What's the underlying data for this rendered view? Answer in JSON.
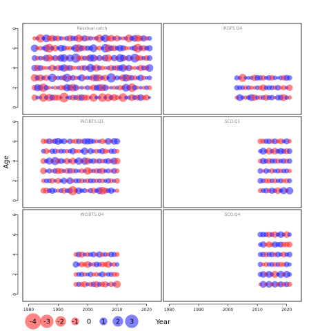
{
  "chart_data": {
    "type": "scatter",
    "subtype": "residual-bubble",
    "xlabel": "Year",
    "ylabel": "Age",
    "xlim": [
      1978,
      2025
    ],
    "ylim": [
      -0.5,
      8.3
    ],
    "xticks": [
      1980,
      1990,
      2000,
      2010,
      2020
    ],
    "yticks": [
      0,
      2,
      4,
      6,
      8
    ],
    "positive_color": "#1a1aff",
    "negative_color": "#ff2020",
    "legend": {
      "values": [
        -4,
        -3,
        -2,
        -1,
        0,
        1,
        2,
        3
      ],
      "labels": [
        "-4",
        "-3",
        "-2",
        "-1",
        "0",
        "1",
        "2",
        "3"
      ]
    },
    "panels": [
      {
        "title": "Residual catch",
        "ages": [
          1,
          2,
          3,
          4,
          5,
          6,
          7
        ],
        "years": [
          1982,
          2021
        ],
        "size_rows": [
          [
            2.8,
            1.9,
            1.2,
            0.8,
            1.5,
            2.2,
            1.0,
            0.6,
            1.7,
            2.4
          ],
          [
            2.4,
            1.6,
            0.9,
            1.8,
            2.1,
            1.1,
            0.7,
            1.9,
            1.3,
            0.8
          ],
          [
            2.6,
            1.4,
            2.0,
            1.0,
            1.6,
            2.3,
            1.2,
            0.9,
            1.8,
            1.1
          ],
          [
            2.2,
            1.7,
            1.1,
            2.0,
            1.4,
            0.8,
            1.9,
            1.5,
            1.0,
            1.6
          ],
          [
            1.9,
            2.3,
            1.3,
            0.9,
            2.2,
            1.6,
            2.6,
            1.1,
            1.4,
            2.0
          ],
          [
            2.5,
            1.2,
            1.8,
            1.5,
            0.9,
            2.1,
            1.7,
            2.4,
            1.0,
            1.3
          ],
          [
            1.6,
            2.0,
            2.3,
            1.1,
            1.8,
            1.3,
            0.9,
            1.6,
            2.1,
            1.2
          ]
        ],
        "sign_rows": [
          [
            -1,
            1,
            1,
            -1,
            1,
            -1,
            1,
            -1,
            -1,
            1
          ],
          [
            1,
            -1,
            -1,
            1,
            1,
            -1,
            1,
            -1,
            1,
            -1
          ],
          [
            1,
            -1,
            1,
            1,
            -1,
            1,
            -1,
            1,
            -1,
            1
          ],
          [
            -1,
            1,
            -1,
            1,
            -1,
            1,
            1,
            -1,
            1,
            -1
          ],
          [
            1,
            -1,
            1,
            -1,
            -1,
            1,
            -1,
            1,
            1,
            -1
          ],
          [
            1,
            -1,
            -1,
            1,
            1,
            -1,
            1,
            -1,
            1,
            1
          ],
          [
            -1,
            1,
            -1,
            1,
            -1,
            1,
            1,
            -1,
            -1,
            1
          ]
        ]
      },
      {
        "title": "IRGFS.Q4",
        "ages": [
          1,
          2,
          3
        ],
        "years": [
          2003,
          2021
        ],
        "size_rows": [
          [
            1.6,
            1.2,
            1.4,
            1.8,
            1.1,
            2.0,
            1.3,
            1.5,
            1.9,
            1.0
          ],
          [
            1.1,
            1.4,
            1.0,
            1.5,
            1.2,
            1.6,
            0.9,
            1.3,
            1.7,
            1.2
          ],
          [
            1.8,
            1.0,
            1.2,
            1.6,
            0.8,
            1.3,
            1.5,
            1.1,
            2.2,
            1.4
          ]
        ],
        "sign_rows": [
          [
            -1,
            1,
            1,
            -1,
            1,
            1,
            -1,
            1,
            -1,
            1
          ],
          [
            -1,
            -1,
            1,
            1,
            1,
            -1,
            1,
            -1,
            -1,
            1
          ],
          [
            -1,
            1,
            1,
            -1,
            1,
            1,
            -1,
            1,
            1,
            1
          ]
        ]
      },
      {
        "title": "WCIBTS.Q1",
        "ages": [
          1,
          2,
          3,
          4,
          5,
          6
        ],
        "years": [
          1985,
          2010
        ],
        "size_rows": [
          [
            2.6,
            1.8,
            1.2,
            1.5,
            1.1,
            0.9,
            1.7,
            2.0,
            1.3,
            1.6
          ],
          [
            1.4,
            1.1,
            1.6,
            0.9,
            1.2,
            1.0,
            1.5,
            1.3,
            1.8,
            1.2
          ],
          [
            1.5,
            1.2,
            1.7,
            1.0,
            1.4,
            1.1,
            1.6,
            2.0,
            1.2,
            1.4
          ],
          [
            1.3,
            1.5,
            1.0,
            1.8,
            1.4,
            2.3,
            1.1,
            1.6,
            1.9,
            2.1
          ],
          [
            1.0,
            1.2,
            1.5,
            1.3,
            1.7,
            1.1,
            1.9,
            1.4,
            1.2,
            1.0
          ],
          [
            1.9,
            1.7,
            1.3,
            1.6,
            1.1,
            1.4,
            1.5,
            1.8,
            1.3,
            0.9
          ]
        ],
        "sign_rows": [
          [
            -1,
            -1,
            1,
            1,
            1,
            -1,
            1,
            -1,
            1,
            1
          ],
          [
            -1,
            1,
            -1,
            1,
            1,
            -1,
            1,
            -1,
            1,
            1
          ],
          [
            -1,
            1,
            -1,
            1,
            -1,
            1,
            1,
            -1,
            1,
            -1
          ],
          [
            1,
            -1,
            1,
            1,
            -1,
            1,
            -1,
            1,
            1,
            -1
          ],
          [
            -1,
            1,
            1,
            -1,
            1,
            1,
            -1,
            1,
            1,
            -1
          ],
          [
            -1,
            -1,
            1,
            -1,
            1,
            1,
            1,
            1,
            -1,
            1
          ]
        ]
      },
      {
        "title": "SCO.Q1",
        "ages": [
          1,
          2,
          3,
          4,
          5,
          6
        ],
        "years": [
          2011,
          2021
        ],
        "size_rows": [
          [
            2.0,
            1.3,
            1.6,
            1.1,
            1.5,
            1.2
          ],
          [
            1.3,
            1.5,
            1.1,
            1.7,
            1.2,
            1.6
          ],
          [
            1.5,
            1.8,
            1.3,
            1.6,
            1.4,
            1.2
          ],
          [
            1.8,
            1.4,
            1.6,
            1.3,
            1.9,
            1.1
          ],
          [
            1.6,
            1.8,
            1.5,
            1.9,
            1.4,
            1.3
          ],
          [
            1.7,
            1.3,
            1.5,
            1.6,
            1.2,
            1.4
          ]
        ],
        "sign_rows": [
          [
            -1,
            1,
            1,
            -1,
            1,
            1
          ],
          [
            1,
            -1,
            1,
            1,
            -1,
            -1
          ],
          [
            1,
            1,
            -1,
            1,
            1,
            -1
          ],
          [
            -1,
            1,
            1,
            -1,
            1,
            1
          ],
          [
            1,
            -1,
            1,
            1,
            1,
            -1
          ],
          [
            1,
            1,
            -1,
            1,
            -1,
            -1
          ]
        ]
      },
      {
        "title": "WCIBTS.Q4",
        "ages": [
          1,
          2,
          3,
          4
        ],
        "years": [
          1996,
          2010
        ],
        "size_rows": [
          [
            2.0,
            1.3,
            1.6,
            1.2,
            1.5,
            1.1,
            1.7
          ],
          [
            1.5,
            1.1,
            1.3,
            1.0,
            1.2,
            1.4,
            1.1
          ],
          [
            1.8,
            1.4,
            1.6,
            1.2,
            1.5,
            1.3,
            1.1
          ],
          [
            1.4,
            1.2,
            1.7,
            1.3,
            1.5,
            1.1,
            1.6
          ]
        ],
        "sign_rows": [
          [
            -1,
            1,
            -1,
            -1,
            1,
            -1,
            1
          ],
          [
            1,
            -1,
            -1,
            1,
            1,
            -1,
            1
          ],
          [
            -1,
            -1,
            1,
            -1,
            1,
            1,
            -1
          ],
          [
            1,
            -1,
            1,
            -1,
            1,
            1,
            -1
          ]
        ]
      },
      {
        "title": "SCO.Q4",
        "ages": [
          1,
          2,
          3,
          4,
          5,
          6
        ],
        "years": [
          2011,
          2021
        ],
        "size_rows": [
          [
            1.2,
            1.5,
            1.1,
            1.8,
            1.4,
            1.2
          ],
          [
            1.6,
            1.3,
            1.8,
            1.2,
            1.9,
            1.5
          ],
          [
            1.3,
            1.7,
            1.2,
            1.6,
            1.1,
            1.4
          ],
          [
            1.5,
            1.2,
            1.9,
            1.4,
            1.7,
            1.3
          ],
          [
            1.4,
            1.6,
            1.3,
            1.8,
            1.5,
            1.2
          ],
          [
            1.6,
            1.4,
            1.7,
            1.3,
            1.5,
            1.4
          ]
        ],
        "sign_rows": [
          [
            -1,
            1,
            -1,
            1,
            -1,
            1
          ],
          [
            1,
            -1,
            1,
            1,
            -1,
            1
          ],
          [
            -1,
            1,
            1,
            -1,
            1,
            -1
          ],
          [
            1,
            1,
            -1,
            1,
            1,
            -1
          ],
          [
            -1,
            1,
            1,
            1,
            -1,
            -1
          ],
          [
            1,
            -1,
            1,
            -1,
            1,
            1
          ]
        ]
      }
    ]
  }
}
